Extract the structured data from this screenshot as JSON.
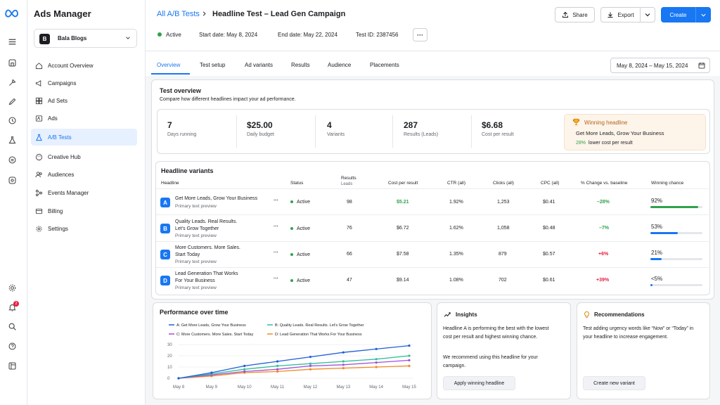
{
  "app": {
    "name": "Ads Manager"
  },
  "account": {
    "initial": "B",
    "name": "Bala Blogs"
  },
  "nav": [
    {
      "label": "Account Overview",
      "icon": "home-icon"
    },
    {
      "label": "Campaigns",
      "icon": "megaphone-icon"
    },
    {
      "label": "Ad Sets",
      "icon": "grid-icon"
    },
    {
      "label": "Ads",
      "icon": "ad-icon"
    },
    {
      "label": "A/B Tests",
      "icon": "flask-icon"
    },
    {
      "label": "Creative Hub",
      "icon": "palette-icon"
    },
    {
      "label": "Audiences",
      "icon": "people-icon"
    },
    {
      "label": "Events Manager",
      "icon": "network-icon"
    },
    {
      "label": "Billing",
      "icon": "card-icon"
    },
    {
      "label": "Settings",
      "icon": "gear-icon"
    }
  ],
  "rail": {
    "notification_count": "2"
  },
  "header": {
    "breadcrumb": "All A/B Tests",
    "title": "Headline Test – Lead Gen Campaign",
    "status": "Active",
    "start": "Start date: May 8, 2024",
    "end": "End date: May 22, 2024",
    "test_id": "Test ID: 2387456",
    "more": "···",
    "share": "Share",
    "export": "Export",
    "create": "Create"
  },
  "tabs": [
    "Overview",
    "Test setup",
    "Ad variants",
    "Results",
    "Audience",
    "Placements"
  ],
  "date_range": "May 8, 2024 – May 15, 2024",
  "overview": {
    "title": "Test overview",
    "subtitle": "Compare how different headlines impact your ad performance.",
    "stats": [
      {
        "value": "7",
        "label": "Days running"
      },
      {
        "value": "$25.00",
        "label": "Daily budget"
      },
      {
        "value": "4",
        "label": "Variants"
      },
      {
        "value": "287",
        "label": "Results (Leads)"
      },
      {
        "value": "$6.68",
        "label": "Cost per result"
      }
    ],
    "winning": {
      "title": "Winning headline",
      "headline": "Get More Leads, Grow Your Business",
      "pct": "28%",
      "note": "lower cost per result"
    }
  },
  "variants": {
    "title": "Headline variants",
    "columns": [
      "Headline",
      "Status",
      "Results",
      "Leads",
      "Cost per result",
      "CTR (all)",
      "Clicks (all)",
      "CPC (all)",
      "% Change vs. baseline",
      "Winning chance"
    ],
    "rows": [
      {
        "letter": "A",
        "line1": "Get More Leads, Grow Your Business",
        "line2": "",
        "sub": "Primary text preview",
        "status": "Active",
        "results": "98",
        "cpr": "$5.21",
        "ctr": "1.92%",
        "clicks": "1,253",
        "cpc": "$0.41",
        "change": "–28%",
        "chance_label": "92%",
        "chance": 0.92,
        "color": "#31a24c"
      },
      {
        "letter": "B",
        "line1": "Quality Leads. Real Results.",
        "line2": "Let's Grow Together",
        "sub": "Primary text preview",
        "status": "Active",
        "results": "76",
        "cpr": "$6.72",
        "ctr": "1.62%",
        "clicks": "1,058",
        "cpc": "$0.48",
        "change": "–7%",
        "chance_label": "53%",
        "chance": 0.53,
        "color": "#1877f2"
      },
      {
        "letter": "C",
        "line1": "More Customers. More Sales.",
        "line2": "Start Today",
        "sub": "Primary text preview",
        "status": "Active",
        "results": "66",
        "cpr": "$7.58",
        "ctr": "1.35%",
        "clicks": "879",
        "cpc": "$0.57",
        "change": "+6%",
        "chance_label": "21%",
        "chance": 0.21,
        "color": "#1877f2"
      },
      {
        "letter": "D",
        "line1": "Lead Generation That Works",
        "line2": "For Your Business",
        "sub": "Primary text preview",
        "status": "Active",
        "results": "47",
        "cpr": "$9.14",
        "ctr": "1.08%",
        "clicks": "702",
        "cpc": "$0.61",
        "change": "+39%",
        "chance_label": "<5%",
        "chance": 0.04,
        "color": "#1877f2"
      }
    ]
  },
  "performance": {
    "title": "Performance over time"
  },
  "chart_data": {
    "type": "line",
    "title": "Performance over time",
    "x": [
      "May 8",
      "May 9",
      "May 10",
      "May 11",
      "May 12",
      "May 13",
      "May 14",
      "May 15"
    ],
    "ylim": [
      0,
      30
    ],
    "yticks": [
      0,
      10,
      20,
      30
    ],
    "legend": "top",
    "series": [
      {
        "name": "A: Get More Leads, Grow Your Business",
        "color": "#1f5fd6",
        "values": [
          0,
          5,
          11,
          15,
          19,
          23,
          26,
          29
        ]
      },
      {
        "name": "B: Quality Leads. Real Results. Let's Grow Together",
        "color": "#2fbf9a",
        "values": [
          0,
          4,
          8,
          11,
          13,
          15,
          17,
          20
        ]
      },
      {
        "name": "C: More Customers. More Sales. Start Today",
        "color": "#a24fd9",
        "values": [
          0,
          3,
          6,
          8,
          11,
          12,
          14,
          16
        ]
      },
      {
        "name": "D: Lead Generation That Works For Your Business",
        "color": "#f08a24",
        "values": [
          0,
          2,
          5,
          6,
          8,
          9,
          10,
          11
        ]
      }
    ]
  },
  "insights": {
    "title": "Insights",
    "p1": "Headline A is performing the best with the lowest cost per result and highest winning chance.",
    "p2": "We recommend using this headline for your campaign.",
    "button": "Apply winning headline"
  },
  "recommendations": {
    "title": "Recommendations",
    "p1": "Test adding urgency words like “Now” or “Today” in your headline to increase engagement.",
    "button": "Create new variant"
  }
}
